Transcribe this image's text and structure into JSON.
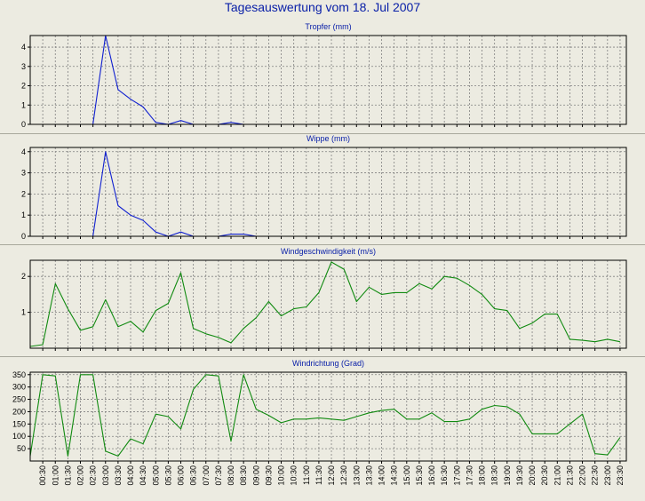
{
  "page_title": "Tagesauswertung vom 18. Jul 2007",
  "colors": {
    "background": "#ecebe1",
    "plot_background": "#ecebe1",
    "grid": "#808080",
    "title_text": "#0a20a8",
    "rain_line": "#1020d0",
    "wind_line": "#108a10"
  },
  "chart_data": [
    {
      "type": "line",
      "title": "Tropfer (mm)",
      "ylim": [
        0,
        4.6
      ],
      "yticks": [
        0,
        1,
        2,
        3,
        4
      ],
      "grid": true,
      "x": [
        0,
        0.5,
        1,
        1.5,
        2,
        2.5,
        3,
        3.5,
        4,
        4.5,
        5,
        5.5,
        6,
        6.5,
        7,
        7.5,
        8,
        8.5,
        9,
        9.5,
        10,
        10.5,
        11,
        11.5,
        12,
        12.5,
        13,
        13.5,
        14,
        14.5,
        15,
        15.5,
        16,
        16.5,
        17,
        17.5,
        18,
        18.5,
        19,
        19.5,
        20,
        20.5,
        21,
        21.5,
        22,
        22.5,
        23,
        23.5
      ],
      "series": [
        {
          "color": "#1020d0",
          "values": [
            0,
            0,
            0,
            0,
            0,
            0,
            4.6,
            1.8,
            1.3,
            0.9,
            0.1,
            0,
            0.2,
            0,
            0,
            0,
            0.1,
            0,
            0,
            0,
            0,
            0,
            0,
            0,
            0,
            0,
            0,
            0,
            0,
            0,
            0,
            0,
            0,
            0,
            0,
            0,
            0,
            0,
            0,
            0,
            0,
            0,
            0,
            0,
            0,
            0,
            0,
            0
          ]
        }
      ]
    },
    {
      "type": "line",
      "title": "Wippe (mm)",
      "ylim": [
        0,
        4.2
      ],
      "yticks": [
        0,
        1,
        2,
        3,
        4
      ],
      "grid": true,
      "x": [
        0,
        0.5,
        1,
        1.5,
        2,
        2.5,
        3,
        3.5,
        4,
        4.5,
        5,
        5.5,
        6,
        6.5,
        7,
        7.5,
        8,
        8.5,
        9,
        9.5,
        10,
        10.5,
        11,
        11.5,
        12,
        12.5,
        13,
        13.5,
        14,
        14.5,
        15,
        15.5,
        16,
        16.5,
        17,
        17.5,
        18,
        18.5,
        19,
        19.5,
        20,
        20.5,
        21,
        21.5,
        22,
        22.5,
        23,
        23.5
      ],
      "series": [
        {
          "color": "#1020d0",
          "values": [
            0,
            0,
            0,
            0,
            0,
            0,
            4.0,
            1.45,
            1.0,
            0.75,
            0.2,
            0,
            0.2,
            0,
            0,
            0,
            0.1,
            0.1,
            0,
            0,
            0,
            0,
            0,
            0,
            0,
            0,
            0,
            0,
            0,
            0,
            0,
            0,
            0,
            0,
            0,
            0,
            0,
            0,
            0,
            0,
            0,
            0,
            0,
            0,
            0,
            0,
            0,
            0
          ]
        }
      ]
    },
    {
      "type": "line",
      "title": "Windgeschwindigkeit (m/s)",
      "ylim": [
        0,
        2.45
      ],
      "yticks": [
        1,
        2
      ],
      "grid": true,
      "x": [
        0,
        0.5,
        1,
        1.5,
        2,
        2.5,
        3,
        3.5,
        4,
        4.5,
        5,
        5.5,
        6,
        6.5,
        7,
        7.5,
        8,
        8.5,
        9,
        9.5,
        10,
        10.5,
        11,
        11.5,
        12,
        12.5,
        13,
        13.5,
        14,
        14.5,
        15,
        15.5,
        16,
        16.5,
        17,
        17.5,
        18,
        18.5,
        19,
        19.5,
        20,
        20.5,
        21,
        21.5,
        22,
        22.5,
        23,
        23.5
      ],
      "series": [
        {
          "color": "#108a10",
          "values": [
            0.05,
            0.1,
            1.8,
            1.1,
            0.5,
            0.6,
            1.35,
            0.6,
            0.75,
            0.45,
            1.05,
            1.25,
            2.1,
            0.55,
            0.4,
            0.3,
            0.15,
            0.55,
            0.85,
            1.3,
            0.9,
            1.1,
            1.15,
            1.55,
            2.4,
            2.2,
            1.3,
            1.7,
            1.5,
            1.55,
            1.55,
            1.8,
            1.65,
            2.0,
            1.95,
            1.75,
            1.5,
            1.1,
            1.05,
            0.55,
            0.7,
            0.95,
            0.95,
            0.25,
            0.22,
            0.18,
            0.25,
            0.18
          ]
        }
      ]
    },
    {
      "type": "line",
      "title": "Windrichtung (Grad)",
      "ylim": [
        0,
        360
      ],
      "yticks": [
        50,
        100,
        150,
        200,
        250,
        300,
        350
      ],
      "grid": true,
      "x": [
        0,
        0.5,
        1,
        1.5,
        2,
        2.5,
        3,
        3.5,
        4,
        4.5,
        5,
        5.5,
        6,
        6.5,
        7,
        7.5,
        8,
        8.5,
        9,
        9.5,
        10,
        10.5,
        11,
        11.5,
        12,
        12.5,
        13,
        13.5,
        14,
        14.5,
        15,
        15.5,
        16,
        16.5,
        17,
        17.5,
        18,
        18.5,
        19,
        19.5,
        20,
        20.5,
        21,
        21.5,
        22,
        22.5,
        23,
        23.5
      ],
      "xticks": [
        "00:30",
        "01:00",
        "01:30",
        "02:00",
        "02:30",
        "03:00",
        "03:30",
        "04:00",
        "04:30",
        "05:00",
        "05:30",
        "06:00",
        "06:30",
        "07:00",
        "07:30",
        "08:00",
        "08:30",
        "09:00",
        "09:30",
        "10:00",
        "10:30",
        "11:00",
        "11:30",
        "12:00",
        "12:30",
        "13:00",
        "13:30",
        "14:00",
        "14:30",
        "15:00",
        "15:30",
        "16:00",
        "16:30",
        "17:00",
        "17:30",
        "18:00",
        "18:30",
        "19:00",
        "19:30",
        "20:00",
        "20:30",
        "21:00",
        "21:30",
        "22:00",
        "22:30",
        "23:00",
        "23:30"
      ],
      "series": [
        {
          "color": "#108a10",
          "values": [
            20,
            350,
            345,
            20,
            350,
            350,
            40,
            20,
            90,
            70,
            190,
            180,
            130,
            290,
            350,
            345,
            80,
            350,
            210,
            185,
            155,
            170,
            170,
            175,
            170,
            165,
            180,
            195,
            205,
            210,
            170,
            170,
            195,
            160,
            160,
            170,
            210,
            225,
            220,
            190,
            110,
            110,
            110,
            150,
            190,
            30,
            25,
            95
          ]
        }
      ]
    }
  ]
}
